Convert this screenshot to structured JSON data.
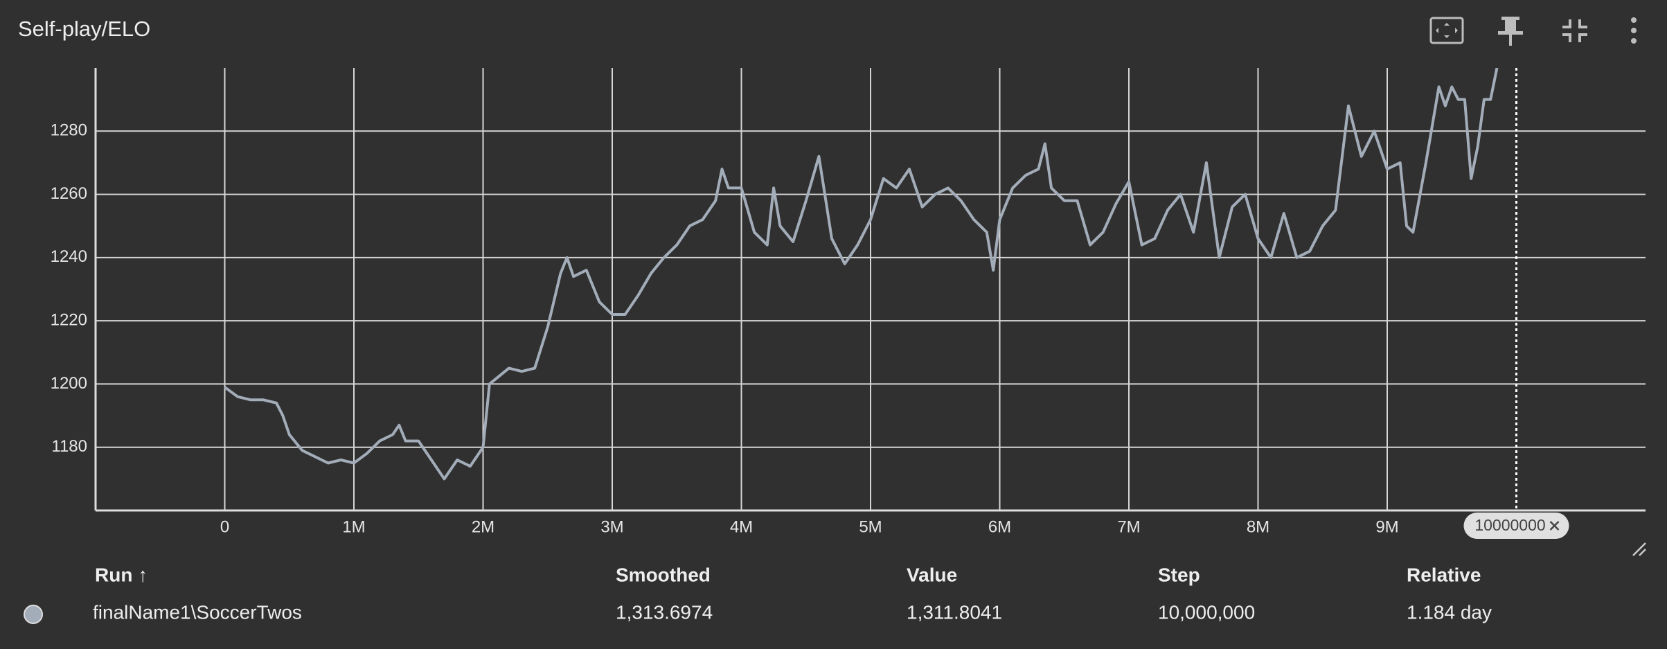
{
  "chart_data": {
    "type": "line",
    "title": "Self-play/ELO",
    "x": [
      0,
      100000,
      200000,
      300000,
      400000,
      450000,
      500000,
      600000,
      700000,
      800000,
      900000,
      1000000,
      1100000,
      1200000,
      1300000,
      1350000,
      1400000,
      1500000,
      1600000,
      1700000,
      1800000,
      1900000,
      2000000,
      2050000,
      2200000,
      2300000,
      2400000,
      2500000,
      2600000,
      2650000,
      2700000,
      2800000,
      2900000,
      3000000,
      3100000,
      3200000,
      3300000,
      3400000,
      3500000,
      3600000,
      3700000,
      3800000,
      3850000,
      3900000,
      4000000,
      4100000,
      4200000,
      4250000,
      4300000,
      4400000,
      4500000,
      4600000,
      4700000,
      4800000,
      4900000,
      5000000,
      5100000,
      5200000,
      5300000,
      5400000,
      5500000,
      5600000,
      5700000,
      5800000,
      5900000,
      5950000,
      6000000,
      6100000,
      6200000,
      6300000,
      6350000,
      6400000,
      6500000,
      6600000,
      6700000,
      6800000,
      6900000,
      7000000,
      7100000,
      7200000,
      7300000,
      7400000,
      7500000,
      7600000,
      7700000,
      7800000,
      7900000,
      8000000,
      8100000,
      8200000,
      8300000,
      8400000,
      8500000,
      8600000,
      8700000,
      8800000,
      8900000,
      9000000,
      9100000,
      9150000,
      9200000,
      9300000,
      9400000,
      9450000,
      9500000,
      9550000,
      9600000,
      9650000,
      9700000,
      9750000,
      9800000,
      9850000
    ],
    "series": [
      {
        "name": "finalName1\\SoccerTwos",
        "color": "#a3adb9",
        "values": [
          1199,
          1196,
          1195,
          1195,
          1194,
          1190,
          1184,
          1179,
          1177,
          1175,
          1176,
          1175,
          1178,
          1182,
          1184,
          1187,
          1182,
          1182,
          1176,
          1170,
          1176,
          1174,
          1180,
          1200,
          1205,
          1204,
          1205,
          1218,
          1235,
          1240,
          1234,
          1236,
          1226,
          1222,
          1222,
          1228,
          1235,
          1240,
          1244,
          1250,
          1252,
          1258,
          1268,
          1262,
          1262,
          1248,
          1244,
          1262,
          1250,
          1245,
          1258,
          1272,
          1246,
          1238,
          1244,
          1252,
          1265,
          1262,
          1268,
          1256,
          1260,
          1262,
          1258,
          1252,
          1248,
          1236,
          1252,
          1262,
          1266,
          1268,
          1276,
          1262,
          1258,
          1258,
          1244,
          1248,
          1257,
          1264,
          1244,
          1246,
          1255,
          1260,
          1248,
          1270,
          1240,
          1256,
          1260,
          1246,
          1240,
          1254,
          1240,
          1242,
          1250,
          1255,
          1288,
          1272,
          1280,
          1268,
          1270,
          1250,
          1248,
          1270,
          1294,
          1288,
          1294,
          1290,
          1290,
          1265,
          1275,
          1290,
          1290,
          1300
        ]
      }
    ],
    "xlim": [
      -1000000,
      11000000
    ],
    "xticks": [
      0,
      {
        "value": 1000000,
        "label": "1M"
      },
      {
        "value": 2000000,
        "label": "2M"
      },
      {
        "value": 3000000,
        "label": "3M"
      },
      {
        "value": 4000000,
        "label": "4M"
      },
      {
        "value": 5000000,
        "label": "5M"
      },
      {
        "value": 6000000,
        "label": "6M"
      },
      {
        "value": 7000000,
        "label": "7M"
      },
      {
        "value": 8000000,
        "label": "8M"
      },
      {
        "value": 9000000,
        "label": "9M"
      }
    ],
    "ylim": [
      1160,
      1300
    ],
    "yticks": [
      1180,
      1200,
      1220,
      1240,
      1260,
      1280
    ],
    "grid": true,
    "marker_x": 10000000
  },
  "table": {
    "headers": [
      "Run ↑",
      "Smoothed",
      "Value",
      "Step",
      "Relative"
    ],
    "rows": [
      [
        "1,313.6974",
        "1,311.8041",
        "10,000,000",
        "1.184 day"
      ]
    ]
  }
}
